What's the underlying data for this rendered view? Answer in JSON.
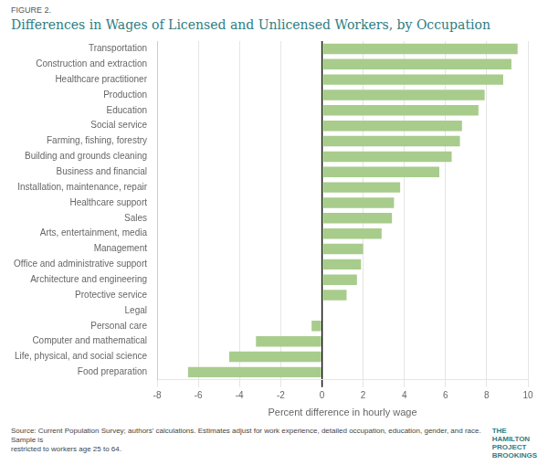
{
  "chart_data": {
    "type": "bar",
    "orientation": "horizontal",
    "subtitle": "FIGURE 2.",
    "title": "Differences in Wages of Licensed and Unlicensed Workers, by Occupation",
    "xlabel": "Percent difference in hourly wage",
    "annotations": [
      "Source: Current Population Survey; authors' calculations. Estimates adjust for work experience, detailed occupation, education, gender, and race. Sample is\nrestricted to workers age 25 to 64.",
      "THE\nHAMILTON\nPROJECT",
      "BROOKINGS"
    ],
    "categories": [
      "Transportation",
      "Construction and extraction",
      "Healthcare practitioner",
      "Production",
      "Education",
      "Social service",
      "Farming, fishing, forestry",
      "Building and grounds cleaning",
      "Business and financial",
      "Installation, maintenance, repair",
      "Healthcare support",
      "Sales",
      "Arts, entertainment, media",
      "Management",
      "Office and administrative support",
      "Architecture and engineering",
      "Protective service",
      "Legal",
      "Personal care",
      "Computer and mathematical",
      "Life, physical, and social science",
      "Food preparation"
    ],
    "values": [
      9.5,
      9.2,
      8.8,
      7.9,
      7.6,
      6.8,
      6.7,
      6.3,
      5.7,
      3.8,
      3.5,
      3.4,
      2.9,
      2.0,
      1.9,
      1.7,
      1.2,
      0.0,
      -0.5,
      -3.2,
      -4.5,
      -6.5
    ],
    "color": "#a8cc8c",
    "xlim": [
      -8,
      10
    ],
    "xticks": [
      -8,
      -6,
      -4,
      -2,
      0,
      2,
      4,
      6,
      8,
      10
    ],
    "grid": true
  }
}
